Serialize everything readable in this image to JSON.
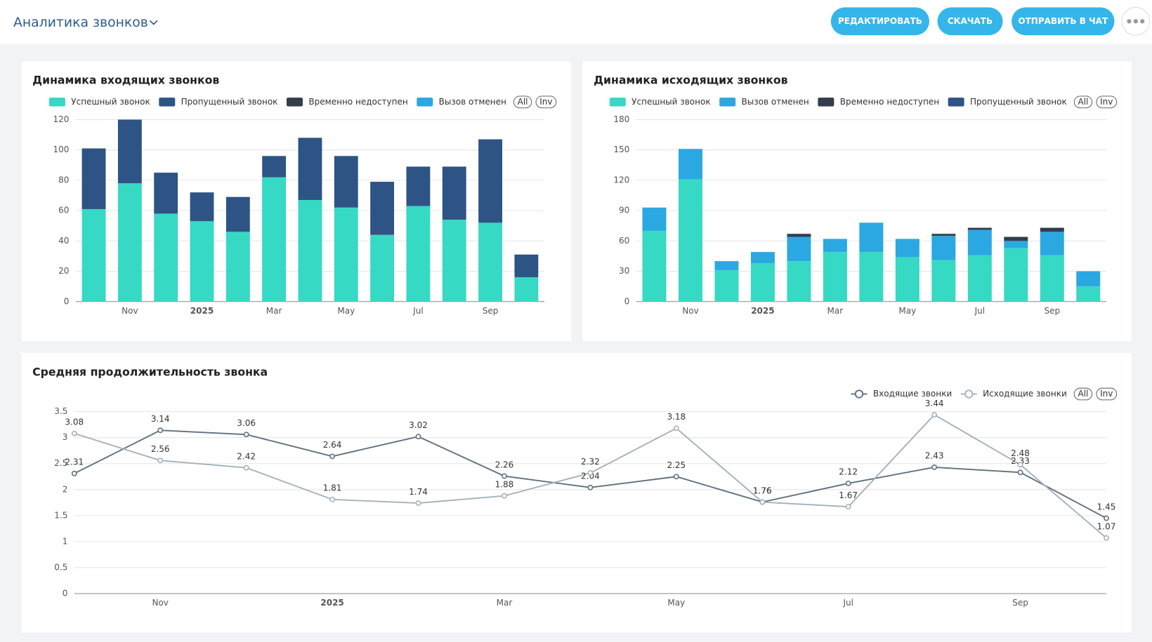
{
  "header": {
    "title": "Аналитика звонков",
    "buttons": [
      "РЕДАКТИРОВАТЬ",
      "СКАЧАТЬ",
      "ОТПРАВИТЬ В ЧАТ"
    ]
  },
  "chart_data": [
    {
      "type": "bar",
      "stacked": true,
      "title": "Динамика входящих звонков",
      "categories": [
        null,
        "Nov",
        null,
        "2025",
        null,
        "Mar",
        null,
        "May",
        null,
        "Jul",
        null,
        "Sep",
        null
      ],
      "series": [
        {
          "name": "Успешный звонок",
          "color": "#36d9c3",
          "values": [
            61,
            78,
            58,
            53,
            46,
            82,
            67,
            62,
            44,
            63,
            54,
            52,
            16
          ]
        },
        {
          "name": "Пропущенный звонок",
          "color": "#2d5485",
          "values": [
            40,
            42,
            27,
            19,
            23,
            14,
            41,
            34,
            35,
            26,
            35,
            55,
            15
          ]
        },
        {
          "name": "Временно недоступен",
          "color": "#333d4c",
          "values": [
            0,
            0,
            0,
            0,
            0,
            0,
            0,
            0,
            0,
            0,
            0,
            0,
            0
          ]
        },
        {
          "name": "Вызов отменен",
          "color": "#2ba8e2",
          "values": [
            0,
            0,
            0,
            0,
            0,
            0,
            0,
            0,
            0,
            0,
            0,
            0,
            0
          ]
        }
      ],
      "ylim": [
        0,
        120
      ],
      "yticks": [
        0,
        20,
        40,
        60,
        80,
        100,
        120
      ],
      "grid": true,
      "legend_controls": [
        "All",
        "Inv"
      ]
    },
    {
      "type": "bar",
      "stacked": true,
      "title": "Динамика исходящих звонков",
      "categories": [
        null,
        "Nov",
        null,
        "2025",
        null,
        "Mar",
        null,
        "May",
        null,
        "Jul",
        null,
        "Sep",
        null
      ],
      "series": [
        {
          "name": "Успешный звонок",
          "color": "#36d9c3",
          "values": [
            70,
            121,
            31,
            38,
            40,
            49,
            49,
            44,
            41,
            46,
            53,
            46,
            15
          ]
        },
        {
          "name": "Вызов отменен",
          "color": "#2ba8e2",
          "values": [
            23,
            30,
            9,
            11,
            24,
            13,
            29,
            18,
            24,
            25,
            7,
            23,
            15
          ]
        },
        {
          "name": "Временно недоступен",
          "color": "#333d4c",
          "values": [
            0,
            0,
            0,
            0,
            3,
            0,
            0,
            0,
            2,
            2,
            4,
            4,
            0
          ]
        },
        {
          "name": "Пропущенный звонок",
          "color": "#2d5485",
          "values": [
            0,
            0,
            0,
            0,
            0,
            0,
            0,
            0,
            0,
            0,
            0,
            0,
            0
          ]
        }
      ],
      "ylim": [
        0,
        180
      ],
      "yticks": [
        0,
        30,
        60,
        90,
        120,
        150,
        180
      ],
      "grid": true,
      "legend_controls": [
        "All",
        "Inv"
      ]
    },
    {
      "type": "line",
      "title": "Средняя продолжительность звонка",
      "categories": [
        null,
        "Nov",
        null,
        "2025",
        null,
        "Mar",
        null,
        "May",
        null,
        "Jul",
        null,
        "Sep",
        null
      ],
      "series": [
        {
          "name": "Входящие звонки",
          "color": "#5f7080",
          "values": [
            2.31,
            3.14,
            3.06,
            2.64,
            3.02,
            2.26,
            2.04,
            2.25,
            1.76,
            2.12,
            2.43,
            2.33,
            1.45
          ]
        },
        {
          "name": "Исходящие звонки",
          "color": "#a3b1bd",
          "values": [
            3.08,
            2.56,
            2.42,
            1.81,
            1.74,
            1.88,
            2.32,
            3.18,
            1.76,
            1.67,
            3.44,
            2.48,
            1.07
          ]
        }
      ],
      "ylim": [
        0,
        3.5
      ],
      "yticks": [
        0,
        0.5,
        1,
        1.5,
        2,
        2.5,
        3,
        3.5
      ],
      "grid": true,
      "data_labels": true,
      "legend_controls": [
        "All",
        "Inv"
      ]
    }
  ]
}
